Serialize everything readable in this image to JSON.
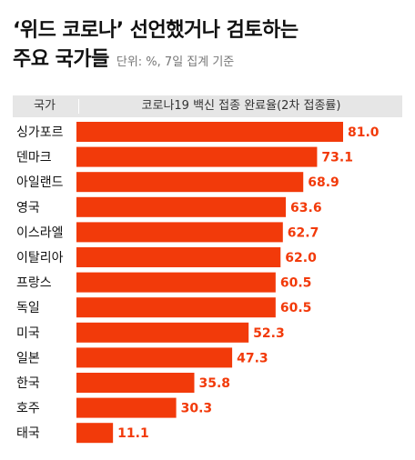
{
  "header": {
    "title_line1": "‘위드 코로나’ 선언했거나 검토하는",
    "title_line2": "주요 국가들",
    "subtitle": "단위: %, 7일 집계 기준"
  },
  "table_header": {
    "country": "국가",
    "metric": "코로나19 백신 접종 완료율(2차 접종률)"
  },
  "colors": {
    "bar": "#f23a0a",
    "value_text": "#f23a0a",
    "header_bg": "#e6e6e6"
  },
  "chart_data": {
    "type": "bar",
    "orientation": "horizontal",
    "title": "‘위드 코로나’ 선언했거나 검토하는 주요 국가들",
    "subtitle": "단위: %, 7일 집계 기준",
    "xlabel": "코로나19 백신 접종 완료율(2차 접종률)",
    "ylabel": "국가",
    "categories": [
      "싱가포르",
      "덴마크",
      "아일랜드",
      "영국",
      "이스라엘",
      "이탈리아",
      "프랑스",
      "독일",
      "미국",
      "일본",
      "한국",
      "호주",
      "태국"
    ],
    "values": [
      81.0,
      73.1,
      68.9,
      63.6,
      62.7,
      62.0,
      60.5,
      60.5,
      52.3,
      47.3,
      35.8,
      30.3,
      11.1
    ],
    "value_labels": [
      "81.0",
      "73.1",
      "68.9",
      "63.6",
      "62.7",
      "62.0",
      "60.5",
      "60.5",
      "52.3",
      "47.3",
      "35.8",
      "30.3",
      "11.1"
    ],
    "xlim": [
      0,
      81
    ],
    "grid": false,
    "legend": "none"
  }
}
